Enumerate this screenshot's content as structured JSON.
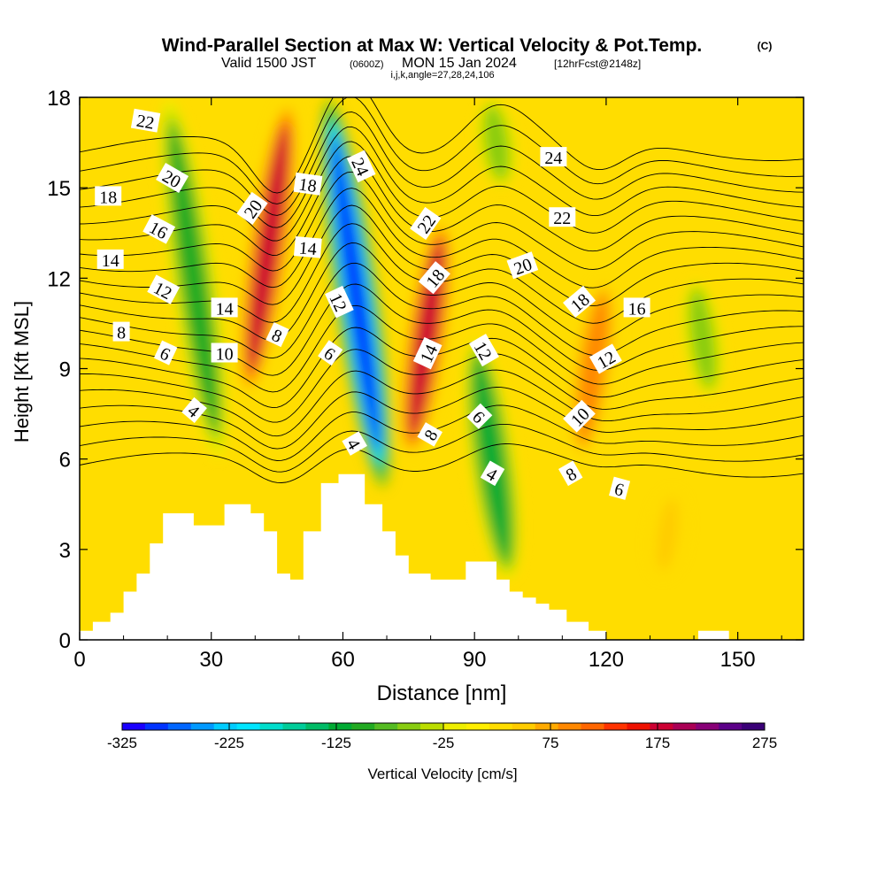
{
  "chart_data": {
    "type": "heatmap",
    "title": "Wind-Parallel Section at Max W: Vertical Velocity & Pot.Temp.",
    "title_mark": "(C)",
    "subtitle_valid": "Valid 1500 JST",
    "subtitle_utc": "(0600Z)",
    "subtitle_date": "MON 15 Jan 2024",
    "subtitle_fcst": "[12hrFcst@2148z]",
    "subtitle_grid": "i,j,k,angle=27,28,24,106",
    "xlabel": "Distance [nm]",
    "ylabel": "Height [Kft MSL]",
    "xlim": [
      0,
      165
    ],
    "ylim": [
      0,
      18
    ],
    "x_ticks": [
      0,
      30,
      60,
      90,
      120,
      150
    ],
    "y_ticks": [
      0,
      3,
      6,
      9,
      12,
      15,
      18
    ],
    "colorbar": {
      "label": "Vertical Velocity [cm/s]",
      "min": -325,
      "max": 275,
      "step": 25,
      "tick_values": [
        -325,
        -225,
        -125,
        -25,
        75,
        175,
        275
      ],
      "tick_labels": [
        "-325",
        "-225",
        "-125",
        "-25",
        "75",
        "175",
        "275"
      ],
      "colors": [
        "#1a00ff",
        "#0033ff",
        "#0066ff",
        "#0099ff",
        "#00ccff",
        "#00e5ff",
        "#00ddcc",
        "#00cc99",
        "#00bb66",
        "#00aa33",
        "#22aa22",
        "#55bb22",
        "#88cc11",
        "#bbdd00",
        "#eeee00",
        "#ffee00",
        "#ffdd00",
        "#ffcc00",
        "#ffaa00",
        "#ff8800",
        "#ff6600",
        "#ff3300",
        "#ee1100",
        "#cc0033",
        "#aa0055",
        "#880077",
        "#5c0088",
        "#3a0077"
      ]
    },
    "vertical_velocity_features": [
      {
        "x": 26,
        "y_from": 6,
        "y_to": 18,
        "w_cm_s": -100
      },
      {
        "x": 43,
        "y_from": 8,
        "y_to": 18,
        "w_cm_s": 175
      },
      {
        "x": 63,
        "y_from": 5,
        "y_to": 18,
        "w_cm_s": -300
      },
      {
        "x": 79,
        "y_from": 6,
        "y_to": 14,
        "w_cm_s": 175
      },
      {
        "x": 94,
        "y_from": 2,
        "y_to": 10,
        "w_cm_s": -125
      },
      {
        "x": 117,
        "y_from": 6,
        "y_to": 12,
        "w_cm_s": 100
      },
      {
        "x": 142,
        "y_from": 8,
        "y_to": 12,
        "w_cm_s": -50
      },
      {
        "x": 134,
        "y_from": 2,
        "y_to": 5,
        "w_cm_s": 50
      },
      {
        "x": 95,
        "y_from": 15,
        "y_to": 18,
        "w_cm_s": -50
      }
    ],
    "theta_contours": {
      "levels": [
        4,
        6,
        8,
        10,
        12,
        14,
        16,
        18,
        20,
        22,
        24
      ],
      "labels": [
        {
          "text": "22",
          "x": 15,
          "y": 17.2,
          "angle": 10
        },
        {
          "text": "20",
          "x": 21,
          "y": 15.3,
          "angle": 30
        },
        {
          "text": "18",
          "x": 6.5,
          "y": 14.7,
          "angle": 0
        },
        {
          "text": "16",
          "x": 18,
          "y": 13.6,
          "angle": 28
        },
        {
          "text": "14",
          "x": 7,
          "y": 12.6,
          "angle": 0
        },
        {
          "text": "12",
          "x": 19,
          "y": 11.6,
          "angle": 28
        },
        {
          "text": "8",
          "x": 9.5,
          "y": 10.2,
          "angle": 0
        },
        {
          "text": "6",
          "x": 19.5,
          "y": 9.5,
          "angle": 25
        },
        {
          "text": "4",
          "x": 26,
          "y": 7.6,
          "angle": 40
        },
        {
          "text": "14",
          "x": 33,
          "y": 11,
          "angle": 0
        },
        {
          "text": "10",
          "x": 33,
          "y": 9.5,
          "angle": 0
        },
        {
          "text": "20",
          "x": 39.5,
          "y": 14.3,
          "angle": -55
        },
        {
          "text": "18",
          "x": 52,
          "y": 15.1,
          "angle": 8
        },
        {
          "text": "14",
          "x": 52,
          "y": 13,
          "angle": 5
        },
        {
          "text": "8",
          "x": 45,
          "y": 10.1,
          "angle": 25
        },
        {
          "text": "6",
          "x": 57,
          "y": 9.5,
          "angle": 35
        },
        {
          "text": "24",
          "x": 64,
          "y": 15.7,
          "angle": 65
        },
        {
          "text": "12",
          "x": 59,
          "y": 11.2,
          "angle": 65
        },
        {
          "text": "4",
          "x": 62.5,
          "y": 6.5,
          "angle": 60
        },
        {
          "text": "22",
          "x": 79,
          "y": 13.8,
          "angle": -55
        },
        {
          "text": "18",
          "x": 81,
          "y": 12,
          "angle": -50
        },
        {
          "text": "14",
          "x": 79.5,
          "y": 9.5,
          "angle": -65
        },
        {
          "text": "8",
          "x": 80,
          "y": 6.8,
          "angle": -60
        },
        {
          "text": "12",
          "x": 92,
          "y": 9.6,
          "angle": 60
        },
        {
          "text": "6",
          "x": 91,
          "y": 7.4,
          "angle": 45
        },
        {
          "text": "4",
          "x": 94,
          "y": 5.5,
          "angle": 30
        },
        {
          "text": "24",
          "x": 108,
          "y": 16,
          "angle": 0
        },
        {
          "text": "22",
          "x": 110,
          "y": 14,
          "angle": 0
        },
        {
          "text": "20",
          "x": 101,
          "y": 12.4,
          "angle": -20
        },
        {
          "text": "18",
          "x": 114,
          "y": 11.2,
          "angle": -40
        },
        {
          "text": "16",
          "x": 127,
          "y": 11,
          "angle": 0
        },
        {
          "text": "12",
          "x": 120,
          "y": 9.3,
          "angle": -30
        },
        {
          "text": "10",
          "x": 114,
          "y": 7.4,
          "angle": -45
        },
        {
          "text": "8",
          "x": 112,
          "y": 5.5,
          "angle": -30
        },
        {
          "text": "6",
          "x": 123,
          "y": 5,
          "angle": 15
        }
      ]
    },
    "terrain_height_kft": [
      [
        0,
        0.3
      ],
      [
        3,
        0.6
      ],
      [
        7,
        0.9
      ],
      [
        10,
        1.6
      ],
      [
        13,
        2.2
      ],
      [
        16,
        3.2
      ],
      [
        19,
        4.2
      ],
      [
        26,
        3.8
      ],
      [
        33,
        4.5
      ],
      [
        39,
        4.2
      ],
      [
        42,
        3.6
      ],
      [
        45,
        2.2
      ],
      [
        48,
        2.0
      ],
      [
        51,
        3.6
      ],
      [
        55,
        5.2
      ],
      [
        59,
        5.5
      ],
      [
        65,
        4.5
      ],
      [
        69,
        3.6
      ],
      [
        72,
        2.8
      ],
      [
        75,
        2.2
      ],
      [
        80,
        2.0
      ],
      [
        88,
        2.6
      ],
      [
        95,
        2.0
      ],
      [
        98,
        1.6
      ],
      [
        101,
        1.4
      ],
      [
        104,
        1.2
      ],
      [
        107,
        1.0
      ],
      [
        111,
        0.6
      ],
      [
        116,
        0.3
      ],
      [
        120,
        0.0
      ],
      [
        140,
        0.0
      ],
      [
        141,
        0.3
      ],
      [
        148,
        0.3
      ],
      [
        148,
        0.0
      ],
      [
        165,
        0.0
      ]
    ]
  }
}
